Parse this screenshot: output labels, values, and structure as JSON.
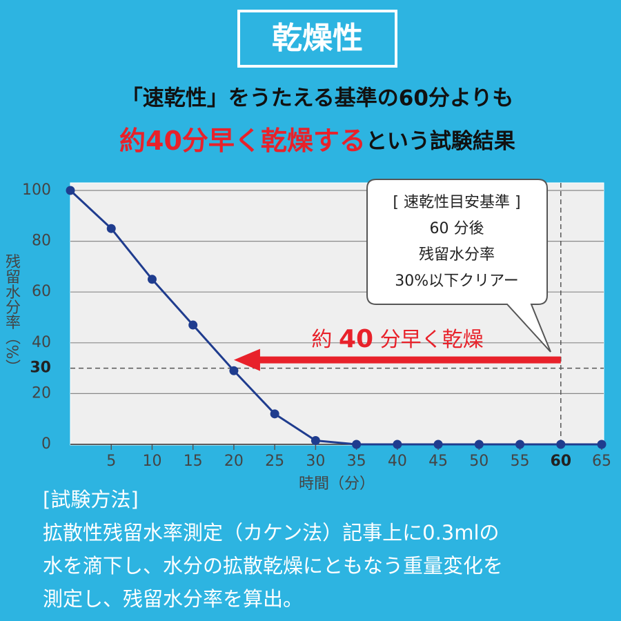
{
  "header": {
    "title": "乾燥性",
    "line1": "「速乾性」をうたえる基準の60分よりも",
    "line2_red": "約40分早く乾燥する",
    "line2_black": "という試験結果"
  },
  "chart_data": {
    "type": "line",
    "x": [
      0,
      5,
      10,
      15,
      20,
      25,
      30,
      35,
      40,
      45,
      50,
      55,
      60,
      65
    ],
    "series": [
      {
        "color": "#1f3c8e",
        "values": [
          100,
          85,
          65,
          47,
          29,
          12,
          1.5,
          0,
          0,
          0,
          0,
          0,
          0,
          0
        ]
      }
    ],
    "xlim": [
      0,
      65
    ],
    "xticks": [
      5,
      10,
      15,
      20,
      25,
      30,
      35,
      40,
      45,
      50,
      55,
      60,
      65
    ],
    "ylim": [
      0,
      100
    ],
    "yticks": [
      0,
      20,
      30,
      40,
      60,
      80,
      100
    ],
    "grid": true,
    "reference": {
      "x": 60,
      "y": 30
    },
    "xlabel": "時間（分）",
    "ylabel": "残留水分率（%）",
    "callout": [
      "[ 速乾性目安基準 ]",
      "60 分後",
      "残留水分率",
      "30%以下クリアー"
    ],
    "arrow": {
      "from": 60,
      "to": 20,
      "color": "#e8212a",
      "label_parts": [
        "約 ",
        "40",
        " 分早く乾燥"
      ]
    }
  },
  "method": {
    "heading": "[試験方法]",
    "lines": [
      "拡散性残留水率測定（カケン法）記事上に0.3mlの",
      "水を滴下し、水分の拡散乾燥にともなう重量変化を",
      "測定し、残留水分率を算出。"
    ]
  }
}
